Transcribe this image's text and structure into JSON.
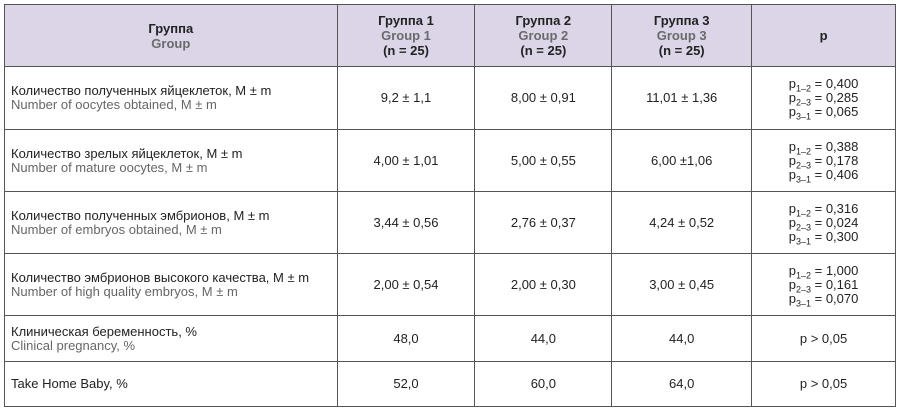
{
  "table": {
    "header": [
      {
        "ru": "Группа",
        "en": "Group"
      },
      {
        "ru": "Группа 1",
        "en": "Group 1",
        "n": "(n = 25)"
      },
      {
        "ru": "Группа 2",
        "en": "Group 2",
        "n": "(n = 25)"
      },
      {
        "ru": "Группа 3",
        "en": "Group 3",
        "n": "(n = 25)"
      },
      {
        "ru": "p"
      }
    ],
    "rows": [
      {
        "ru": "Количество полученных яйцеклеток, M ± m",
        "en": "Number of oocytes obtained, M ± m",
        "cells": [
          "9,2 ± 1,1",
          "8,00 ± 0,91",
          "11,01 ± 1,36"
        ],
        "p": [
          {
            "symbol": "p",
            "sub": "1–2",
            "rest": " = 0,400"
          },
          {
            "symbol": "p",
            "sub": "2–3",
            "rest": " = 0,285"
          },
          {
            "symbol": "p",
            "sub": "3–1",
            "rest": " = 0,065"
          }
        ]
      },
      {
        "ru": "Количество зрелых яйцеклеток, M ± m",
        "en": "Number of mature oocytes, M ± m",
        "cells": [
          "4,00 ± 1,01",
          "5,00 ± 0,55",
          "6,00 ±1,06"
        ],
        "p": [
          {
            "symbol": "p",
            "sub": "1–2",
            "rest": " = 0,388"
          },
          {
            "symbol": "p",
            "sub": "2–3",
            "rest": " = 0,178"
          },
          {
            "symbol": "p",
            "sub": "3–1",
            "rest": " = 0,406"
          }
        ]
      },
      {
        "ru": "Количество полученных эмбрионов, M ± m",
        "en": "Number of embryos obtained, M ± m",
        "cells": [
          "3,44 ± 0,56",
          "2,76 ± 0,37",
          "4,24 ± 0,52"
        ],
        "p": [
          {
            "symbol": "p",
            "sub": "1–2",
            "rest": " = 0,316"
          },
          {
            "symbol": "p",
            "sub": "2–3",
            "rest": " = 0,024"
          },
          {
            "symbol": "p",
            "sub": "3–1",
            "rest": " = 0,300"
          }
        ]
      },
      {
        "ru": "Количество эмбрионов высокого качества, M ± m",
        "en": "Number of high quality embryos, M ± m",
        "cells": [
          "2,00 ± 0,54",
          "2,00 ± 0,30",
          "3,00 ± 0,45"
        ],
        "p": [
          {
            "symbol": "p",
            "sub": "1–2",
            "rest": " = 1,000"
          },
          {
            "symbol": "p",
            "sub": "2–3",
            "rest": " = 0,161"
          },
          {
            "symbol": "p",
            "sub": "3–1",
            "rest": " = 0,070"
          }
        ]
      },
      {
        "ru": "Клиническая беременность, %",
        "en": "Clinical pregnancy, %",
        "cells": [
          "48,0",
          "44,0",
          "44,0"
        ],
        "p": "p > 0,05"
      },
      {
        "ru": "Take Home Baby, %",
        "cells": [
          "52,0",
          "60,0",
          "64,0"
        ],
        "p": "p > 0,05"
      }
    ]
  }
}
